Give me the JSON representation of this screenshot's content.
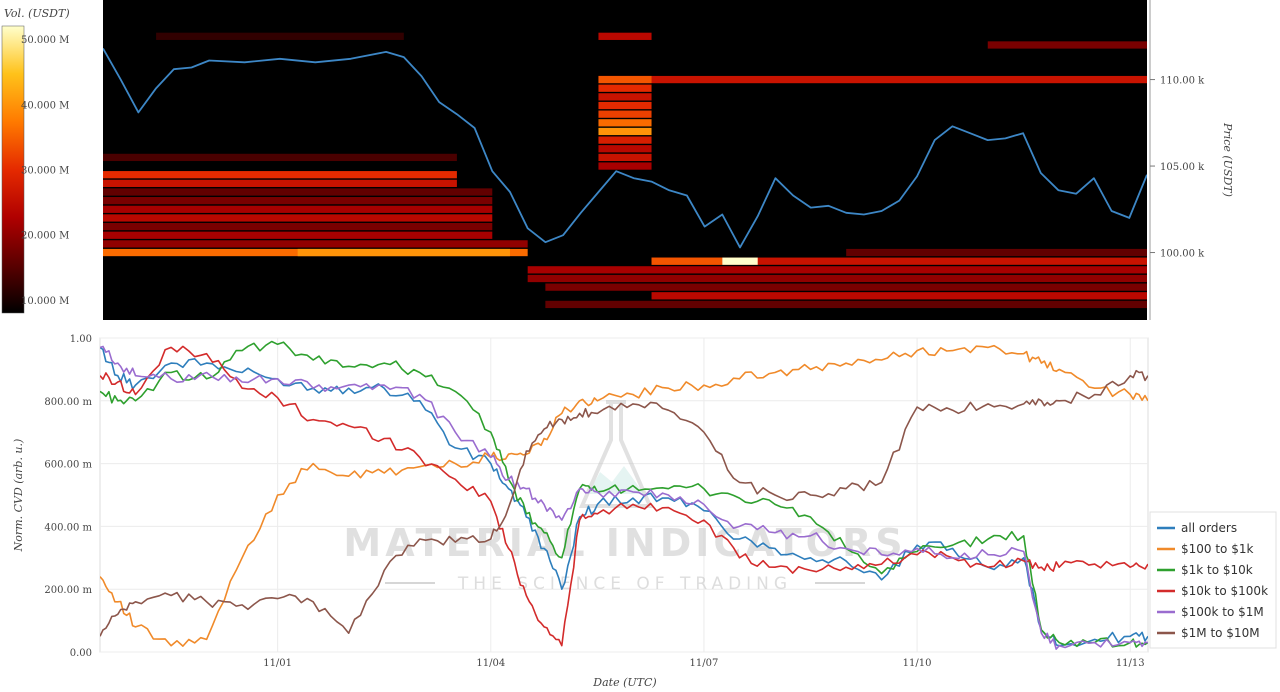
{
  "chart_data": [
    {
      "type": "heatmap",
      "colorbar": {
        "title": "Vol. (USDT)",
        "ticks": [
          "50.000 M",
          "40.000 M",
          "30.000 M",
          "20.000 M",
          "10.000 M"
        ],
        "tick_values": [
          50,
          40,
          30,
          20,
          10
        ],
        "range": [
          8,
          52
        ],
        "colorscale": [
          "#000000",
          "#5a0000",
          "#b00000",
          "#e52a00",
          "#ff7a00",
          "#ffc21a",
          "#ffffcc"
        ]
      },
      "yaxis": {
        "label": "Price (USDT)",
        "side": "right",
        "ticks": [
          "110.00 k",
          "105.00 k",
          "100.00 k"
        ],
        "tick_values": [
          110000,
          105000,
          100000
        ],
        "range": [
          96100,
          114600
        ]
      },
      "xrange": [
        "2025-10-29T12:00",
        "2025-11-13T06:00"
      ],
      "bands": [
        {
          "price": 100000,
          "x0": "2025-10-29T12:00",
          "x1": "2025-11-04T12:00",
          "vol": 36
        },
        {
          "price": 100000,
          "x0": "2025-11-01T06:00",
          "x1": "2025-11-04T06:00",
          "vol": 40
        },
        {
          "price": 100500,
          "x0": "2025-10-29T12:00",
          "x1": "2025-11-04T12:00",
          "vol": 20
        },
        {
          "price": 101000,
          "x0": "2025-10-29T12:00",
          "x1": "2025-11-04T00:00",
          "vol": 22
        },
        {
          "price": 101500,
          "x0": "2025-10-29T12:00",
          "x1": "2025-11-04T00:00",
          "vol": 18
        },
        {
          "price": 102000,
          "x0": "2025-10-29T12:00",
          "x1": "2025-11-04T00:00",
          "vol": 24
        },
        {
          "price": 102500,
          "x0": "2025-10-29T12:00",
          "x1": "2025-11-04T00:00",
          "vol": 22
        },
        {
          "price": 103000,
          "x0": "2025-10-29T12:00",
          "x1": "2025-11-04T00:00",
          "vol": 18
        },
        {
          "price": 103500,
          "x0": "2025-10-29T12:00",
          "x1": "2025-11-04T00:00",
          "vol": 16
        },
        {
          "price": 104000,
          "x0": "2025-10-29T12:00",
          "x1": "2025-11-03T12:00",
          "vol": 26
        },
        {
          "price": 104500,
          "x0": "2025-10-29T12:00",
          "x1": "2025-11-03T12:00",
          "vol": 30
        },
        {
          "price": 105500,
          "x0": "2025-10-29T12:00",
          "x1": "2025-11-03T12:00",
          "vol": 14
        },
        {
          "price": 110000,
          "x0": "2025-11-05T12:00",
          "x1": "2025-11-13T06:00",
          "vol": 26
        },
        {
          "price": 110000,
          "x0": "2025-11-05T12:00",
          "x1": "2025-11-06T06:00",
          "vol": 34
        },
        {
          "price": 112000,
          "x0": "2025-11-11T00:00",
          "x1": "2025-11-13T06:00",
          "vol": 18
        },
        {
          "price": 112500,
          "x0": "2025-11-05T12:00",
          "x1": "2025-11-06T06:00",
          "vol": 24
        },
        {
          "price": 109500,
          "x0": "2025-11-05T12:00",
          "x1": "2025-11-06T06:00",
          "vol": 30
        },
        {
          "price": 109000,
          "x0": "2025-11-05T12:00",
          "x1": "2025-11-06T06:00",
          "vol": 26
        },
        {
          "price": 108500,
          "x0": "2025-11-05T12:00",
          "x1": "2025-11-06T06:00",
          "vol": 30
        },
        {
          "price": 108000,
          "x0": "2025-11-05T12:00",
          "x1": "2025-11-06T06:00",
          "vol": 32
        },
        {
          "price": 107500,
          "x0": "2025-11-05T12:00",
          "x1": "2025-11-06T06:00",
          "vol": 36
        },
        {
          "price": 107000,
          "x0": "2025-11-05T12:00",
          "x1": "2025-11-06T06:00",
          "vol": 40
        },
        {
          "price": 106500,
          "x0": "2025-11-05T12:00",
          "x1": "2025-11-06T06:00",
          "vol": 28
        },
        {
          "price": 106000,
          "x0": "2025-11-05T12:00",
          "x1": "2025-11-06T06:00",
          "vol": 24
        },
        {
          "price": 105500,
          "x0": "2025-11-05T12:00",
          "x1": "2025-11-06T06:00",
          "vol": 26
        },
        {
          "price": 105000,
          "x0": "2025-11-05T12:00",
          "x1": "2025-11-06T06:00",
          "vol": 22
        },
        {
          "price": 99500,
          "x0": "2025-11-06T06:00",
          "x1": "2025-11-13T06:00",
          "vol": 26
        },
        {
          "price": 99500,
          "x0": "2025-11-06T06:00",
          "x1": "2025-11-07T06:00",
          "vol": 34
        },
        {
          "price": 99500,
          "x0": "2025-11-07T06:00",
          "x1": "2025-11-07T18:00",
          "vol": 52
        },
        {
          "price": 99000,
          "x0": "2025-11-04T12:00",
          "x1": "2025-11-13T06:00",
          "vol": 22
        },
        {
          "price": 98500,
          "x0": "2025-11-04T12:00",
          "x1": "2025-11-13T06:00",
          "vol": 20
        },
        {
          "price": 98000,
          "x0": "2025-11-04T18:00",
          "x1": "2025-11-13T06:00",
          "vol": 18
        },
        {
          "price": 97500,
          "x0": "2025-11-06T06:00",
          "x1": "2025-11-13T06:00",
          "vol": 24
        },
        {
          "price": 97000,
          "x0": "2025-11-04T18:00",
          "x1": "2025-11-13T06:00",
          "vol": 16
        },
        {
          "price": 100000,
          "x0": "2025-11-09T00:00",
          "x1": "2025-11-13T06:00",
          "vol": 16
        },
        {
          "price": 112500,
          "x0": "2025-10-30T06:00",
          "x1": "2025-11-02T18:00",
          "vol": 12
        }
      ],
      "series": [
        {
          "name": "",
          "color": "#3d87c6",
          "x": [
            "2025-10-29T12:00",
            "2025-10-29T18:00",
            "2025-10-30T00:00",
            "2025-10-30T06:00",
            "2025-10-30T12:00",
            "2025-10-30T18:00",
            "2025-10-31T00:00",
            "2025-10-31T12:00",
            "2025-11-01T00:00",
            "2025-11-01T12:00",
            "2025-11-02T00:00",
            "2025-11-02T12:00",
            "2025-11-02T18:00",
            "2025-11-03T00:00",
            "2025-11-03T06:00",
            "2025-11-03T12:00",
            "2025-11-03T18:00",
            "2025-11-04T00:00",
            "2025-11-04T06:00",
            "2025-11-04T12:00",
            "2025-11-04T18:00",
            "2025-11-05T00:00",
            "2025-11-05T06:00",
            "2025-11-05T12:00",
            "2025-11-05T18:00",
            "2025-11-06T00:00",
            "2025-11-06T06:00",
            "2025-11-06T12:00",
            "2025-11-06T18:00",
            "2025-11-07T00:00",
            "2025-11-07T06:00",
            "2025-11-07T12:00",
            "2025-11-07T18:00",
            "2025-11-08T00:00",
            "2025-11-08T06:00",
            "2025-11-08T12:00",
            "2025-11-08T18:00",
            "2025-11-09T00:00",
            "2025-11-09T06:00",
            "2025-11-09T12:00",
            "2025-11-09T18:00",
            "2025-11-10T00:00",
            "2025-11-10T06:00",
            "2025-11-10T12:00",
            "2025-11-10T18:00",
            "2025-11-11T00:00",
            "2025-11-11T06:00",
            "2025-11-11T12:00",
            "2025-11-11T18:00",
            "2025-11-12T00:00",
            "2025-11-12T06:00",
            "2025-11-12T12:00",
            "2025-11-12T18:00",
            "2025-11-13T00:00",
            "2025-11-13T06:00"
          ],
          "values": [
            111800,
            110000,
            108100,
            109500,
            110600,
            110700,
            111100,
            111000,
            111200,
            111000,
            111200,
            111600,
            111300,
            110200,
            108700,
            108000,
            107200,
            104700,
            103500,
            101400,
            100600,
            101000,
            102300,
            103500,
            104700,
            104300,
            104100,
            103600,
            103300,
            101500,
            102200,
            100300,
            102100,
            104300,
            103300,
            102600,
            102700,
            102300,
            102200,
            102400,
            103000,
            104400,
            106500,
            107300,
            106900,
            106500,
            106600,
            106900,
            104600,
            103600,
            103400,
            104300,
            102400,
            102000,
            104500
          ]
        }
      ]
    },
    {
      "type": "line",
      "xlabel": "Date (UTC)",
      "ylabel": "Norm. CVD (arb. u.)",
      "xrange": [
        "2025-10-29T12:00",
        "2025-11-13T06:00"
      ],
      "xticks": [
        "11/01",
        "11/04",
        "11/07",
        "11/10",
        "11/13"
      ],
      "xtick_values": [
        "2025-11-01T00:00",
        "2025-11-04T00:00",
        "2025-11-07T00:00",
        "2025-11-10T00:00",
        "2025-11-13T00:00"
      ],
      "ylim": [
        0,
        1
      ],
      "yticks": [
        "1.00",
        "800.00 m",
        "600.00 m",
        "400.00 m",
        "200.00 m",
        "0.00"
      ],
      "ytick_values": [
        1.0,
        0.8,
        0.6,
        0.4,
        0.2,
        0.0
      ],
      "grid": true,
      "legend": "bottom-right",
      "x": [
        "2025-10-29T12:00",
        "2025-10-29T18:00",
        "2025-10-30T00:00",
        "2025-10-30T12:00",
        "2025-10-31T00:00",
        "2025-10-31T12:00",
        "2025-11-01T00:00",
        "2025-11-01T12:00",
        "2025-11-02T00:00",
        "2025-11-02T12:00",
        "2025-11-03T00:00",
        "2025-11-03T12:00",
        "2025-11-04T00:00",
        "2025-11-04T06:00",
        "2025-11-04T12:00",
        "2025-11-04T18:00",
        "2025-11-05T00:00",
        "2025-11-05T06:00",
        "2025-11-05T12:00",
        "2025-11-06T00:00",
        "2025-11-06T12:00",
        "2025-11-07T00:00",
        "2025-11-07T12:00",
        "2025-11-08T00:00",
        "2025-11-08T12:00",
        "2025-11-09T00:00",
        "2025-11-09T12:00",
        "2025-11-10T00:00",
        "2025-11-10T12:00",
        "2025-11-11T00:00",
        "2025-11-11T12:00",
        "2025-11-11T18:00",
        "2025-11-12T00:00",
        "2025-11-12T12:00",
        "2025-11-13T00:00",
        "2025-11-13T06:00"
      ],
      "series": [
        {
          "name": "all orders",
          "color": "#2e7ebc",
          "values": [
            0.97,
            0.88,
            0.85,
            0.92,
            0.92,
            0.89,
            0.87,
            0.84,
            0.84,
            0.84,
            0.8,
            0.65,
            0.6,
            0.52,
            0.43,
            0.33,
            0.2,
            0.43,
            0.47,
            0.49,
            0.49,
            0.45,
            0.36,
            0.33,
            0.3,
            0.29,
            0.23,
            0.34,
            0.33,
            0.27,
            0.3,
            0.07,
            0.02,
            0.04,
            0.05,
            0.05
          ]
        },
        {
          "name": "$100 to $1k",
          "color": "#f08a2a",
          "values": [
            0.24,
            0.16,
            0.08,
            0.02,
            0.04,
            0.3,
            0.5,
            0.6,
            0.56,
            0.57,
            0.59,
            0.6,
            0.62,
            0.63,
            0.63,
            0.68,
            0.76,
            0.8,
            0.8,
            0.82,
            0.84,
            0.85,
            0.87,
            0.89,
            0.9,
            0.92,
            0.93,
            0.96,
            0.96,
            0.97,
            0.95,
            0.92,
            0.9,
            0.84,
            0.82,
            0.8
          ]
        },
        {
          "name": "$1k to $10k",
          "color": "#2ea02e",
          "values": [
            0.83,
            0.8,
            0.8,
            0.89,
            0.87,
            0.96,
            0.98,
            0.93,
            0.91,
            0.92,
            0.89,
            0.83,
            0.7,
            0.55,
            0.44,
            0.38,
            0.3,
            0.52,
            0.51,
            0.53,
            0.52,
            0.52,
            0.49,
            0.47,
            0.43,
            0.33,
            0.25,
            0.32,
            0.34,
            0.36,
            0.37,
            0.07,
            0.03,
            0.03,
            0.03,
            0.03
          ]
        },
        {
          "name": "$10k to $100k",
          "color": "#d32b2b",
          "values": [
            0.88,
            0.86,
            0.82,
            0.97,
            0.95,
            0.84,
            0.81,
            0.74,
            0.72,
            0.68,
            0.62,
            0.55,
            0.48,
            0.33,
            0.18,
            0.08,
            0.02,
            0.42,
            0.44,
            0.47,
            0.46,
            0.42,
            0.3,
            0.27,
            0.26,
            0.27,
            0.28,
            0.31,
            0.3,
            0.27,
            0.29,
            0.27,
            0.27,
            0.28,
            0.27,
            0.28
          ]
        },
        {
          "name": "$100k to $1M",
          "color": "#9a6ccf",
          "values": [
            0.97,
            0.92,
            0.88,
            0.87,
            0.89,
            0.86,
            0.87,
            0.84,
            0.85,
            0.85,
            0.82,
            0.7,
            0.62,
            0.55,
            0.52,
            0.47,
            0.42,
            0.52,
            0.51,
            0.51,
            0.5,
            0.47,
            0.4,
            0.38,
            0.37,
            0.33,
            0.31,
            0.33,
            0.3,
            0.31,
            0.32,
            0.06,
            0.02,
            0.03,
            0.03,
            0.03
          ]
        },
        {
          "name": "$1M to $10M",
          "color": "#8c564b",
          "values": [
            0.05,
            0.12,
            0.16,
            0.18,
            0.16,
            0.15,
            0.17,
            0.16,
            0.06,
            0.26,
            0.36,
            0.35,
            0.36,
            0.46,
            0.64,
            0.71,
            0.74,
            0.76,
            0.76,
            0.79,
            0.77,
            0.7,
            0.54,
            0.5,
            0.5,
            0.52,
            0.54,
            0.78,
            0.77,
            0.79,
            0.79,
            0.8,
            0.8,
            0.82,
            0.88,
            0.88
          ]
        }
      ]
    }
  ],
  "watermark": {
    "name": "MATERIAL INDICATORS",
    "tagline": "THE SCIENCE OF TRADING"
  }
}
